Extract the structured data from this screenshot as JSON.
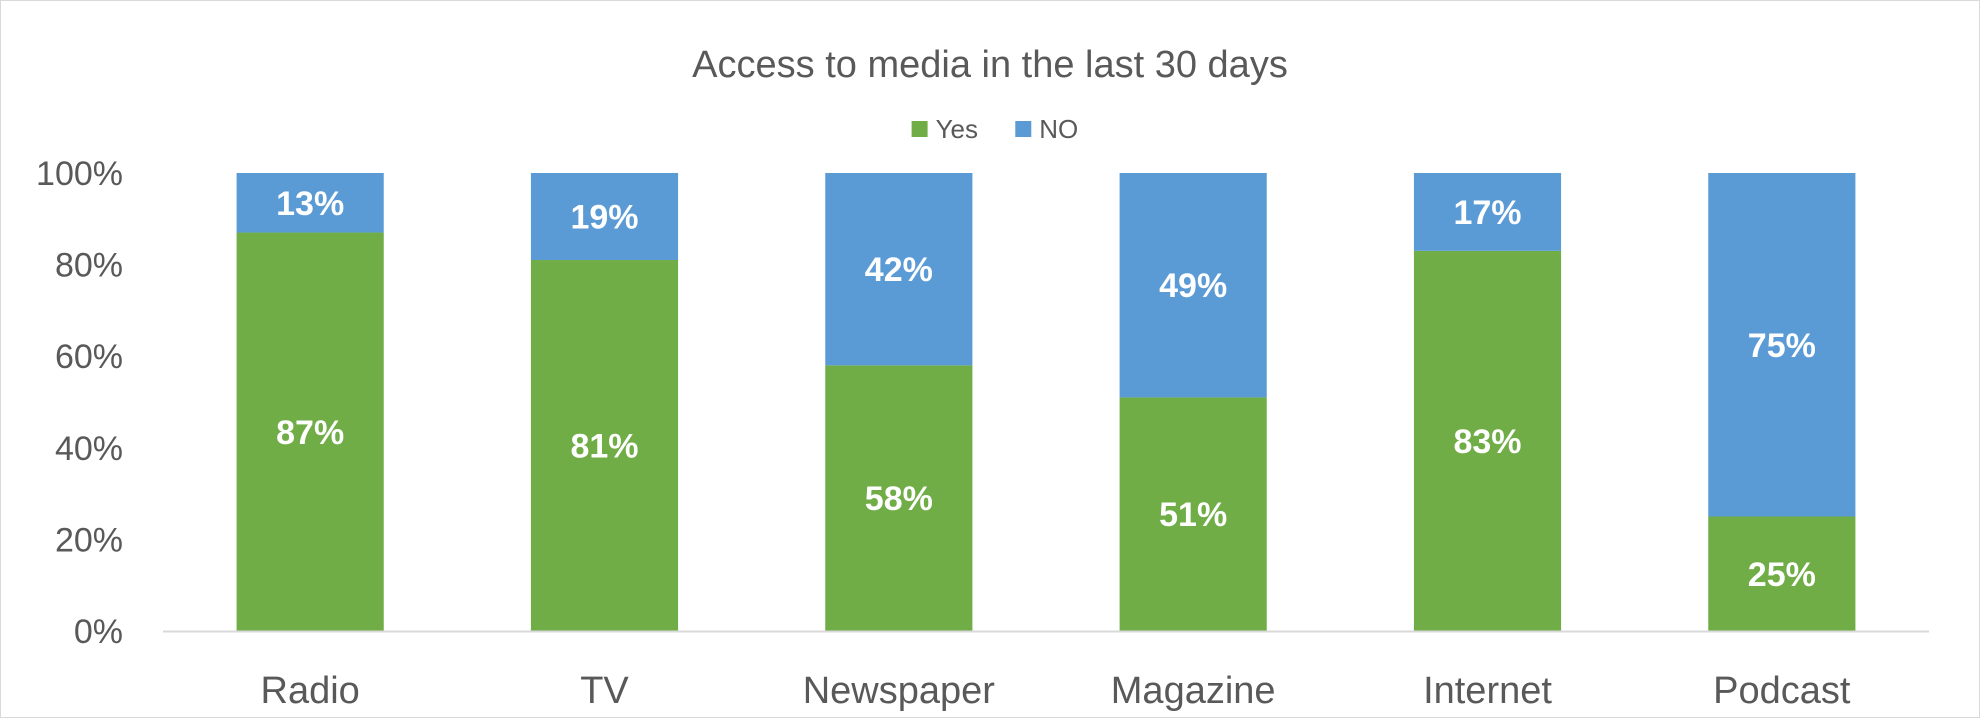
{
  "chart_data": {
    "type": "bar",
    "stacked": true,
    "title": "Access to media in the last 30 days",
    "categories": [
      "Radio",
      "TV",
      "Newspaper",
      "Magazine",
      "Internet",
      "Podcast"
    ],
    "series": [
      {
        "name": "Yes",
        "color": "#70ad47",
        "values": [
          87,
          81,
          58,
          51,
          83,
          25
        ],
        "labels": [
          "87%",
          "81%",
          "58%",
          "51%",
          "83%",
          "25%"
        ]
      },
      {
        "name": "NO",
        "color": "#5b9bd5",
        "values": [
          13,
          19,
          42,
          49,
          17,
          75
        ],
        "labels": [
          "13%",
          "19%",
          "42%",
          "49%",
          "17%",
          "75%"
        ]
      }
    ],
    "ylim": [
      0,
      100
    ],
    "yticks": [
      0,
      20,
      40,
      60,
      80,
      100
    ],
    "ytick_labels": [
      "0%",
      "20%",
      "40%",
      "60%",
      "80%",
      "100%"
    ],
    "xlabel": "",
    "ylabel": "",
    "legend_position": "top-center",
    "grid": false
  }
}
